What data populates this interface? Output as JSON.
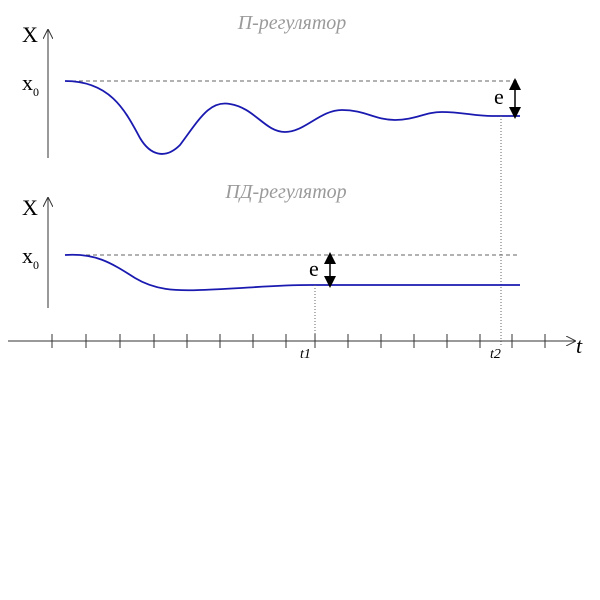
{
  "panels": [
    {
      "title": "П-регулятор",
      "y_label": "X",
      "x0_main": "x",
      "x0_sub": "0",
      "error_label": "e"
    },
    {
      "title": "ПД-регулятор",
      "y_label": "X",
      "x0_main": "x",
      "x0_sub": "0",
      "error_label": "e"
    }
  ],
  "time_axis": {
    "label": "t",
    "marks": [
      "t1",
      "t2"
    ]
  }
}
